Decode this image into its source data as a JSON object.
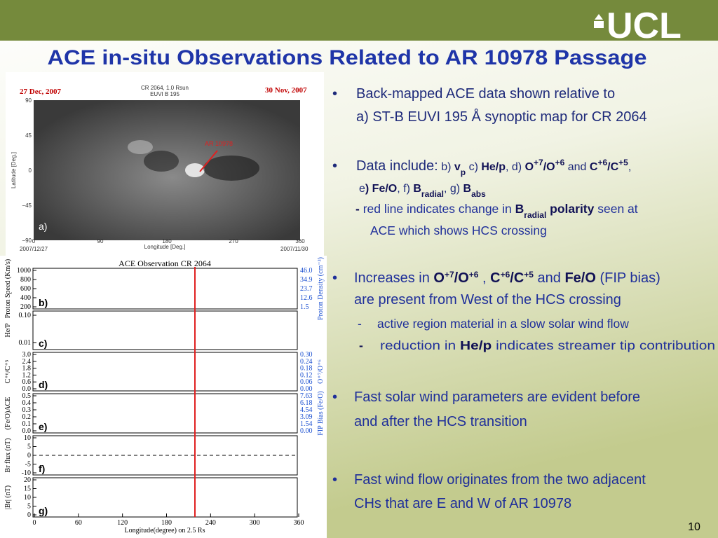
{
  "header": {
    "logo": "UCL",
    "title": "ACE in-situ Observations Related to AR 10978 Passage",
    "page_number": "10"
  },
  "map": {
    "date_left": "27 Dec, 2007",
    "date_right": "30 Nov, 2007",
    "title_1": "CR 2064, 1.0 Rsun",
    "title_2": "EUVI B 195",
    "yticks": [
      "90",
      "45",
      "0",
      "−45",
      "−90"
    ],
    "xticks": [
      "0",
      "90",
      "180",
      "270",
      "360"
    ],
    "xlabel": "Longitude [Deg.]",
    "ylabel": "Latitude [Deg.]",
    "annotation": "AR 10978",
    "panel_label": "a)",
    "foot_left": "2007/12/27",
    "foot_right": "2007/11/30"
  },
  "plots": {
    "title": "ACE Observation   CR 2064",
    "xticks": [
      "0",
      "60",
      "120",
      "180",
      "240",
      "300",
      "360"
    ],
    "xlabel": "Longitude(degree) on 2.5 Rs",
    "panels": [
      {
        "label": "b)",
        "ylabel": "Proton Speed (Km/s)",
        "yticks": [
          "1000",
          "800",
          "600",
          "400",
          "200"
        ],
        "y2label": "Proton Density (cm⁻³)",
        "y2ticks": [
          "46.0",
          "34.9",
          "23.7",
          "12.6",
          "1.5"
        ]
      },
      {
        "label": "c)",
        "ylabel": "He/P",
        "yticks": [
          "0.10",
          "0.01"
        ]
      },
      {
        "label": "d)",
        "ylabel": "C⁺⁶/C⁺⁵",
        "yticks": [
          "3.0",
          "2.4",
          "1.8",
          "1.2",
          "0.6",
          "0.0"
        ],
        "y2label": "O⁺⁷/O⁺⁶",
        "y2ticks": [
          "0.30",
          "0.24",
          "0.18",
          "0.12",
          "0.06",
          "0.00"
        ]
      },
      {
        "label": "e)",
        "ylabel": "(Fe/O)ACE",
        "yticks": [
          "0.5",
          "0.4",
          "0.3",
          "0.2",
          "0.1",
          "0.0"
        ],
        "y2label": "FIP Bias (Fe/O)",
        "y2ticks": [
          "7.63",
          "6.18",
          "4.54",
          "3.09",
          "1.54",
          "0.00"
        ]
      },
      {
        "label": "f)",
        "ylabel": "Br flux (nT)",
        "yticks": [
          "10",
          "5",
          "0",
          "-5",
          "-10"
        ]
      },
      {
        "label": "g)",
        "ylabel": "|Br| (nT)",
        "yticks": [
          "20",
          "15",
          "10",
          "5",
          "0"
        ]
      }
    ]
  },
  "bullets": [
    {
      "lines": [
        [
          "Back-mapped ACE data shown relative to"
        ],
        [
          "a) ST-B EUVI 195 Å synoptic map for CR 2064"
        ]
      ]
    },
    {
      "lines": [
        [
          "Data include:",
          " b) ",
          "v",
          "p",
          " c) ",
          "He/p",
          ", d) ",
          "O",
          "+7",
          "/O",
          "+6",
          " and ",
          "C",
          "+6",
          "/C",
          "+5",
          ","
        ],
        [
          "e",
          ") Fe/O",
          ", f) ",
          "B",
          "radial",
          ", g) ",
          "B",
          "abs"
        ]
      ],
      "sub": [
        [
          "-",
          " red line indicates change in ",
          "B",
          "radial",
          " polarity",
          " seen at"
        ],
        [
          "ACE which shows HCS crossing"
        ]
      ]
    },
    {
      "lines": [
        [
          "Increases in ",
          "O",
          "+7",
          "/O",
          "+6",
          " , ",
          "C",
          "+6",
          "/C",
          "+5",
          " and ",
          "Fe/O",
          " (FIP bias)"
        ],
        [
          "are present from West of the HCS crossing"
        ]
      ],
      "sub": [
        [
          "-",
          "active region material in a slow solar wind flow"
        ],
        [
          "-",
          "reduction in ",
          "He/p",
          " indicates streamer tip contribution"
        ]
      ]
    },
    {
      "lines": [
        [
          "Fast solar wind parameters are evident before"
        ],
        [
          "and after the HCS transition"
        ]
      ]
    },
    {
      "lines": [
        [
          "Fast wind flow originates from the two adjacent"
        ],
        [
          "CHs that are E and W of AR 10978"
        ]
      ]
    }
  ]
}
